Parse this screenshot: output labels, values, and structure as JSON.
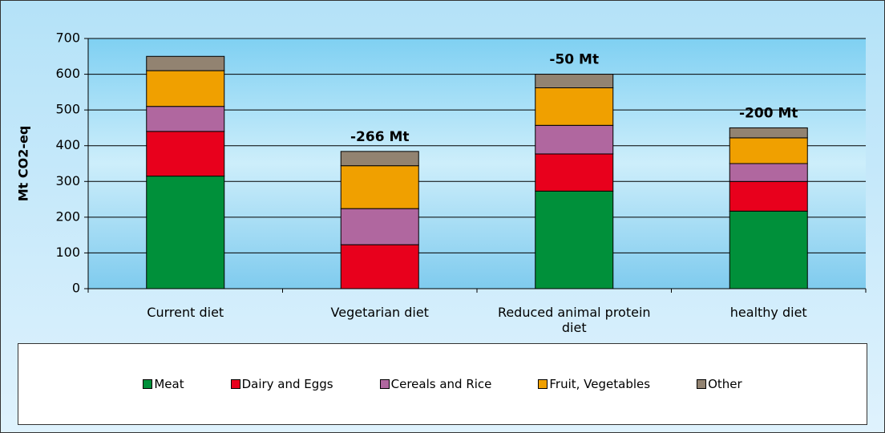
{
  "chart_data": {
    "type": "stacked_bar",
    "y_label": "Mt CO2-eq",
    "categories": [
      "Current diet",
      "Vegetarian diet",
      "Reduced animal protein diet",
      "healthy diet"
    ],
    "series": [
      {
        "name": "Meat",
        "color": "#00903a",
        "values": [
          315,
          0,
          273,
          217
        ]
      },
      {
        "name": "Dairy and Eggs",
        "color": "#e8001c",
        "values": [
          125,
          123,
          104,
          83
        ]
      },
      {
        "name": "Cereals and Rice",
        "color": "#b0679f",
        "values": [
          70,
          101,
          80,
          50
        ]
      },
      {
        "name": "Fruit, Vegetables",
        "color": "#f0a000",
        "values": [
          100,
          120,
          105,
          72
        ]
      },
      {
        "name": "Other",
        "color": "#928371",
        "values": [
          40,
          40,
          38,
          28
        ]
      }
    ],
    "annotations": [
      null,
      "-266 Mt",
      "-50 Mt",
      "-200 Mt"
    ],
    "ylim": [
      0,
      700
    ],
    "yticks": [
      0,
      100,
      200,
      300,
      400,
      500,
      600,
      700
    ],
    "grid": true
  }
}
